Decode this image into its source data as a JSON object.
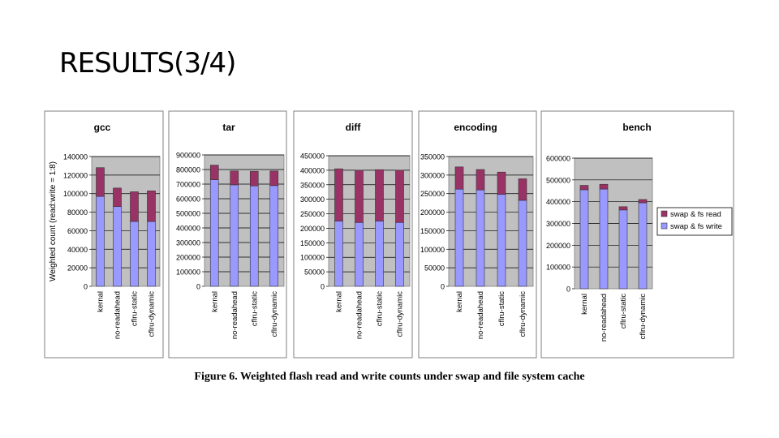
{
  "slide": {
    "title": "RESULTS(3/4)"
  },
  "figure": {
    "caption": "Figure 6. Weighted flash read and write counts under swap and file system cache"
  },
  "colors": {
    "read": "#993366",
    "write": "#9999ff",
    "plot_bg": "#c0c0c0"
  },
  "chart_data": [
    {
      "type": "bar",
      "stacked": true,
      "title": "gcc",
      "ylabel": "Weighted count (read:write = 1:8)",
      "categories": [
        "kernal",
        "no-readahead",
        "cflru-static",
        "cflru-dynamic"
      ],
      "ylim": [
        0,
        140000
      ],
      "yticks": [
        "0",
        "20000",
        "40000",
        "60000",
        "80000",
        "100000",
        "120000",
        "140000"
      ],
      "series": [
        {
          "name": "swap & fs write",
          "values": [
            97000,
            86000,
            70000,
            70000
          ]
        },
        {
          "name": "swap & fs read",
          "values": [
            31000,
            20000,
            32000,
            33000
          ]
        }
      ]
    },
    {
      "type": "bar",
      "stacked": true,
      "title": "tar",
      "categories": [
        "kernal",
        "no-readahead",
        "cflru-static",
        "cflru-dynamic"
      ],
      "ylim": [
        0,
        900000
      ],
      "yticks": [
        "0",
        "100000",
        "200000",
        "300000",
        "400000",
        "500000",
        "600000",
        "700000",
        "800000",
        "900000"
      ],
      "series": [
        {
          "name": "swap & fs write",
          "values": [
            730000,
            695000,
            688000,
            690000
          ]
        },
        {
          "name": "swap & fs read",
          "values": [
            100000,
            95000,
            100000,
            100000
          ]
        }
      ]
    },
    {
      "type": "bar",
      "stacked": true,
      "title": "diff",
      "categories": [
        "kernal",
        "no-readahead",
        "cflru-static",
        "cflru-dynamic"
      ],
      "ylim": [
        0,
        450000
      ],
      "yticks": [
        "0",
        "50000",
        "100000",
        "150000",
        "200000",
        "250000",
        "300000",
        "350000",
        "400000",
        "450000"
      ],
      "series": [
        {
          "name": "swap & fs write",
          "values": [
            225000,
            220000,
            225000,
            220000
          ]
        },
        {
          "name": "swap & fs read",
          "values": [
            180000,
            180000,
            177000,
            180000
          ]
        }
      ]
    },
    {
      "type": "bar",
      "stacked": true,
      "title": "encoding",
      "categories": [
        "kernal",
        "no-readahead",
        "cflru-static",
        "cflru-dynamic"
      ],
      "ylim": [
        0,
        350000
      ],
      "yticks": [
        "0",
        "50000",
        "100000",
        "150000",
        "200000",
        "250000",
        "300000",
        "350000"
      ],
      "series": [
        {
          "name": "swap & fs write",
          "values": [
            262000,
            260000,
            248000,
            232000
          ]
        },
        {
          "name": "swap & fs read",
          "values": [
            60000,
            55000,
            60000,
            58000
          ]
        }
      ]
    },
    {
      "type": "bar",
      "stacked": true,
      "title": "bench",
      "categories": [
        "kernal",
        "no-readahead",
        "cflru-static",
        "cflru-dynamic"
      ],
      "ylim": [
        0,
        600000
      ],
      "yticks": [
        "0",
        "100000",
        "200000",
        "300000",
        "400000",
        "500000",
        "600000"
      ],
      "legend": [
        "swap & fs read",
        "swap & fs write"
      ],
      "legend_position": "right",
      "series": [
        {
          "name": "swap & fs write",
          "values": [
            455000,
            458000,
            362000,
            395000
          ]
        },
        {
          "name": "swap & fs read",
          "values": [
            20000,
            22000,
            15000,
            15000
          ]
        }
      ]
    }
  ]
}
